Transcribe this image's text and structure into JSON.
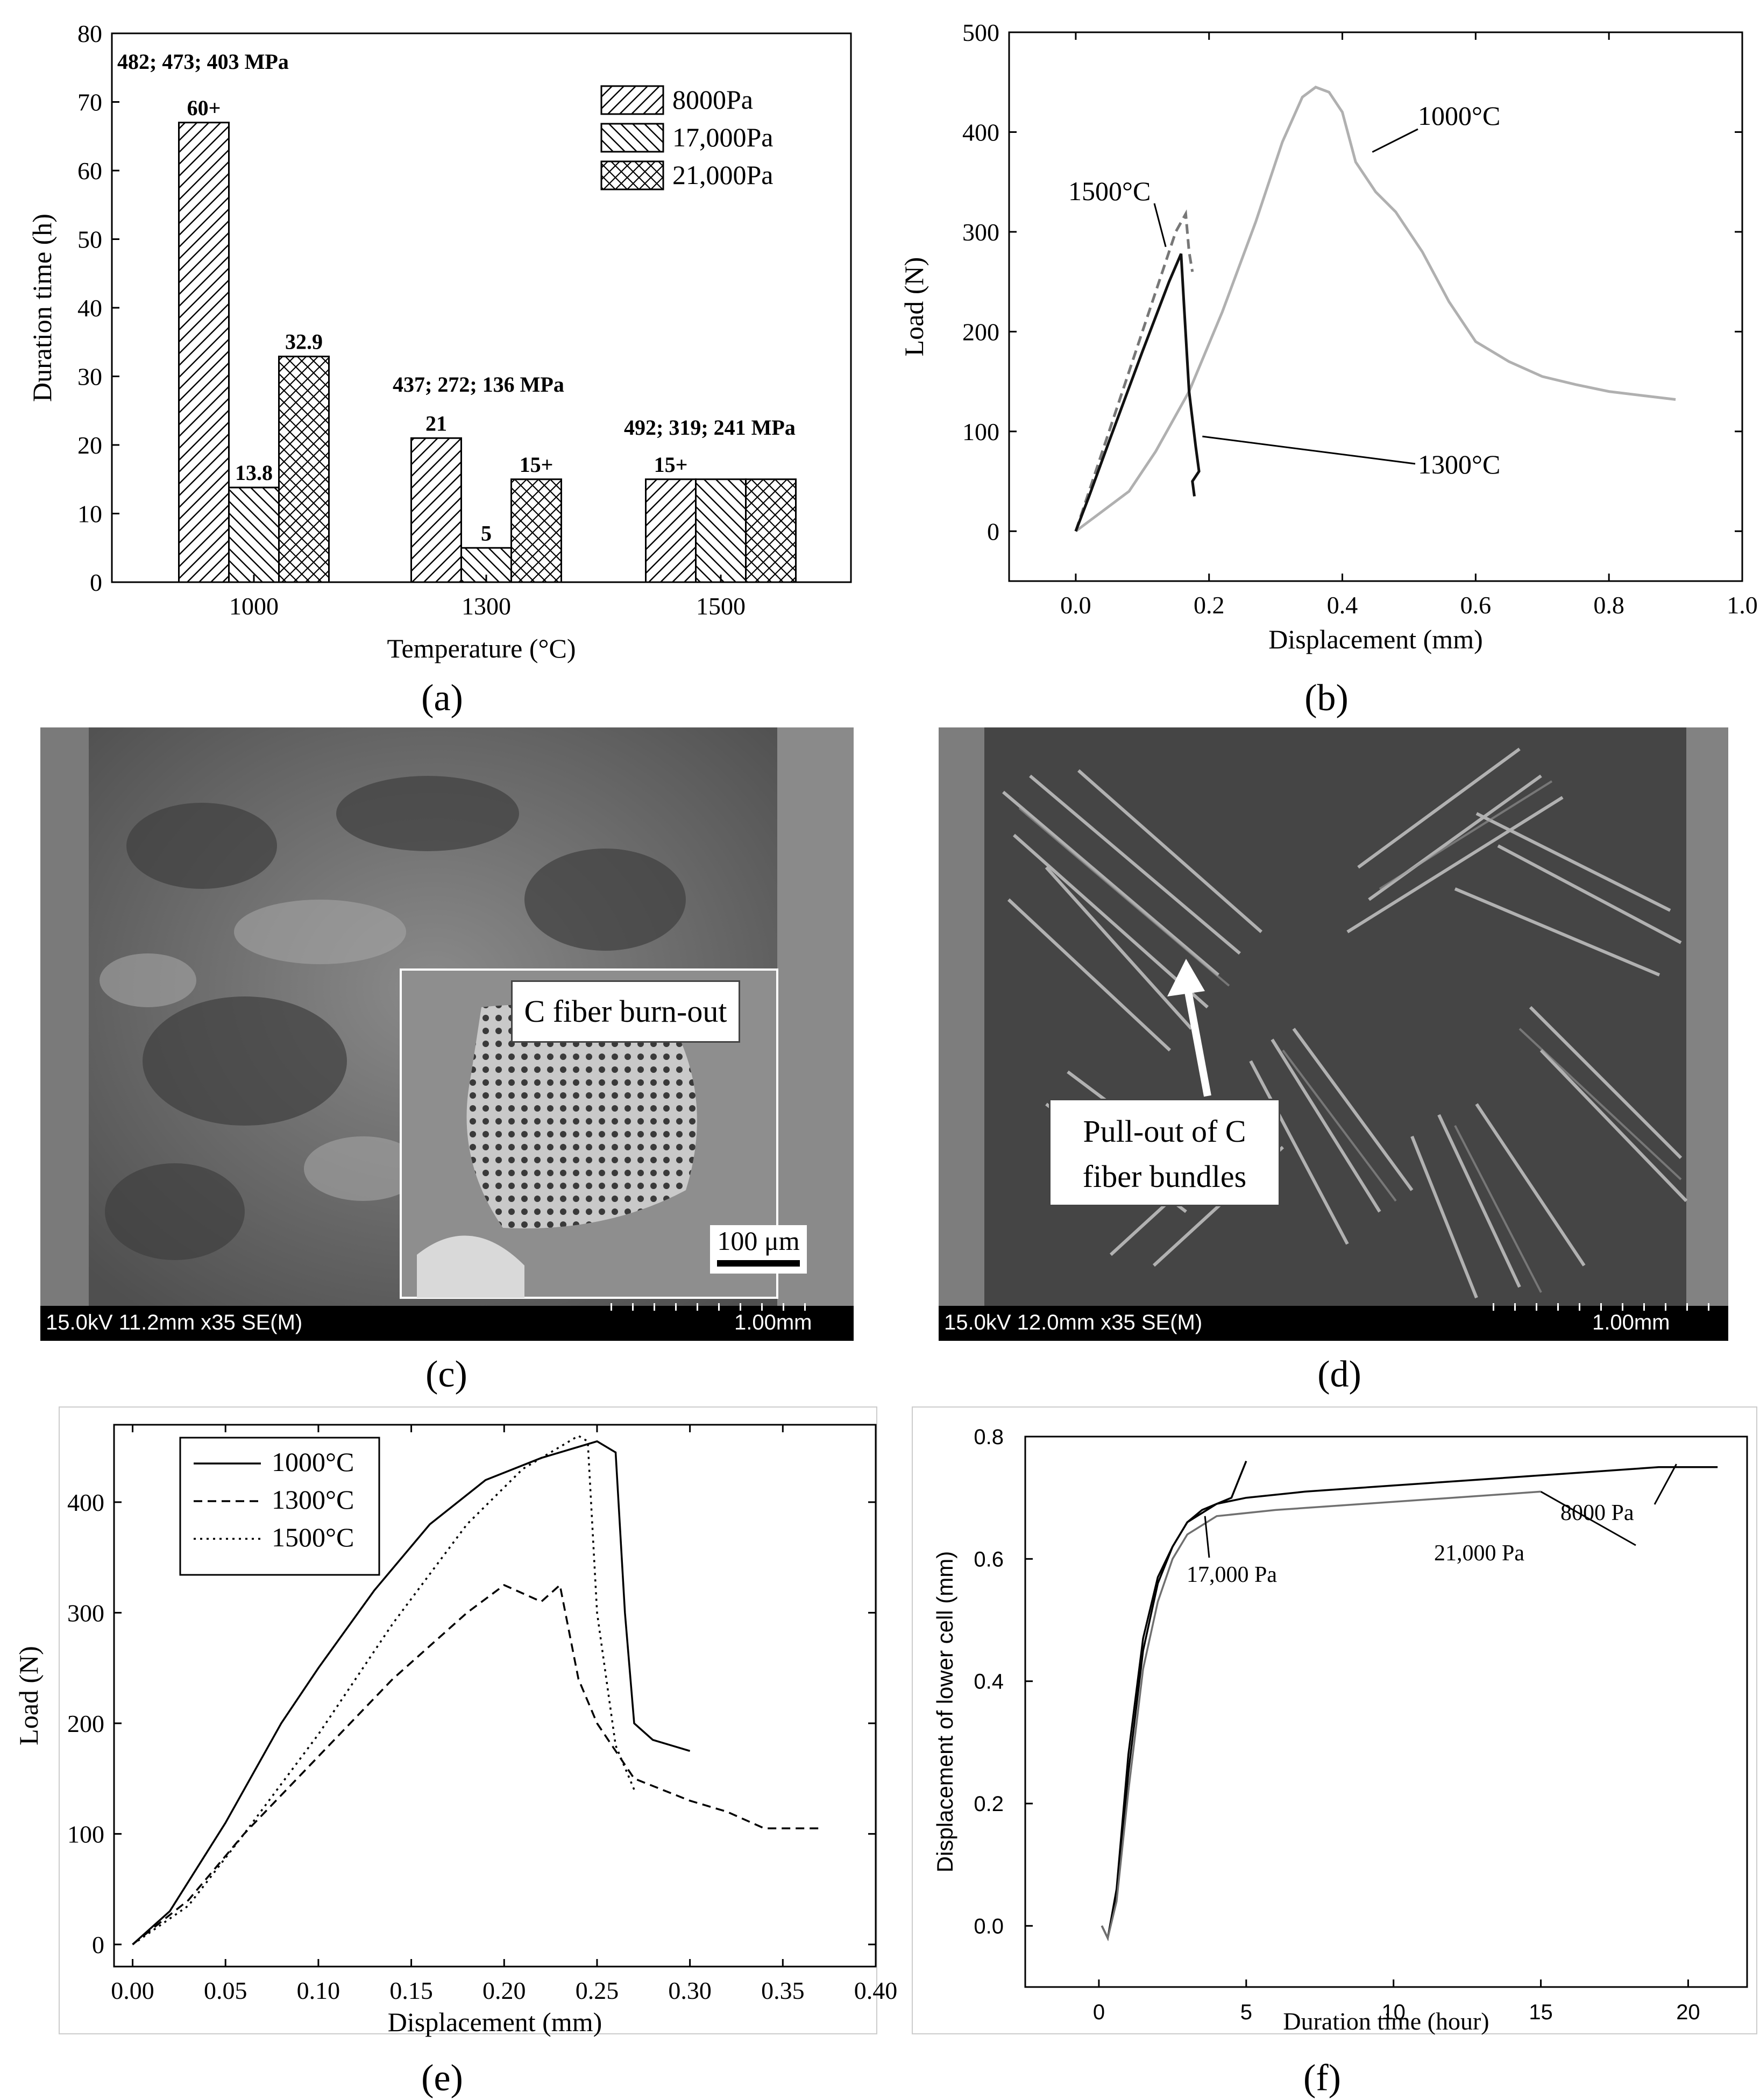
{
  "captions": [
    "(a)",
    "(b)",
    "(c)",
    "(d)",
    "(e)",
    "(f)"
  ],
  "sem_c": {
    "bar_text": "15.0kV 11.2mm x35 SE(M)",
    "scale_text": "1.00mm",
    "inset_label": "C fiber burn-out",
    "inset_scale": "100 μm"
  },
  "sem_d": {
    "bar_text": "15.0kV 12.0mm x35 SE(M)",
    "scale_text": "1.00mm",
    "label_line1": "Pull-out of C",
    "label_line2": "fiber bundles"
  },
  "chart_data": [
    {
      "id": "a",
      "type": "bar",
      "title": "",
      "xlabel": "Temperature (°C)",
      "ylabel": "Duration time (h)",
      "ylim": [
        0,
        80
      ],
      "yticks": [
        0,
        10,
        20,
        30,
        40,
        50,
        60,
        70,
        80
      ],
      "categories": [
        "1000",
        "1300",
        "1500"
      ],
      "series": [
        {
          "name": "8000Pa",
          "pattern": "hatch-forward",
          "values": [
            67,
            21,
            15
          ]
        },
        {
          "name": "17,000Pa",
          "pattern": "hatch-back",
          "values": [
            13.8,
            5,
            15
          ]
        },
        {
          "name": "21,000Pa",
          "pattern": "cross-hatch",
          "values": [
            32.9,
            15,
            15
          ]
        }
      ],
      "data_labels": [
        [
          "60+",
          "13.8",
          "32.9"
        ],
        [
          "21",
          "5",
          "15+"
        ],
        [
          "15+",
          "",
          ""
        ]
      ],
      "group_annotations": [
        "482; 473; 403 MPa",
        "437; 272; 136 MPa",
        "492; 319; 241 MPa"
      ],
      "legend_position": "top-right"
    },
    {
      "id": "b",
      "type": "line",
      "xlabel": "Displacement (mm)",
      "ylabel": "Load (N)",
      "xlim": [
        -0.1,
        1.0
      ],
      "ylim": [
        -50,
        500
      ],
      "xticks": [
        "0.0",
        "0.2",
        "0.4",
        "0.6",
        "0.8",
        "1.0"
      ],
      "xtick_values": [
        0,
        0.2,
        0.4,
        0.6,
        0.8,
        1.0
      ],
      "yticks": [
        0,
        100,
        200,
        300,
        400,
        500
      ],
      "series": [
        {
          "name": "1000°C",
          "color": "#b0b0b0",
          "style": "solid",
          "x": [
            0,
            0.03,
            0.08,
            0.12,
            0.17,
            0.22,
            0.27,
            0.31,
            0.34,
            0.36,
            0.38,
            0.4,
            0.42,
            0.45,
            0.48,
            0.52,
            0.56,
            0.6,
            0.65,
            0.7,
            0.75,
            0.8,
            0.85,
            0.9
          ],
          "y": [
            0,
            15,
            40,
            80,
            140,
            220,
            310,
            390,
            435,
            445,
            440,
            420,
            370,
            340,
            320,
            280,
            230,
            190,
            170,
            155,
            147,
            140,
            136,
            132
          ]
        },
        {
          "name": "1500°C",
          "color": "#777777",
          "style": "dashed",
          "x": [
            0,
            0.02,
            0.05,
            0.1,
            0.15,
            0.165,
            0.17,
            0.175
          ],
          "y": [
            0,
            40,
            100,
            200,
            300,
            318,
            280,
            260
          ]
        },
        {
          "name": "1300°C",
          "color": "#111111",
          "style": "solid",
          "x": [
            0,
            0.02,
            0.05,
            0.1,
            0.14,
            0.158,
            0.163,
            0.17,
            0.18,
            0.185,
            0.175,
            0.178
          ],
          "y": [
            0,
            35,
            90,
            180,
            250,
            278,
            220,
            140,
            85,
            60,
            50,
            35
          ]
        }
      ],
      "annotations": [
        "1000°C",
        "1500°C",
        "1300°C"
      ]
    },
    {
      "id": "e",
      "type": "line",
      "xlabel": "Displacement (mm)",
      "ylabel": "Load (N)",
      "xlim": [
        -0.01,
        0.4
      ],
      "ylim": [
        -20,
        470
      ],
      "xticks": [
        "0.00",
        "0.05",
        "0.10",
        "0.15",
        "0.20",
        "0.25",
        "0.30",
        "0.35",
        "0.40"
      ],
      "xtick_values": [
        0,
        0.05,
        0.1,
        0.15,
        0.2,
        0.25,
        0.3,
        0.35,
        0.4
      ],
      "yticks": [
        0,
        100,
        200,
        300,
        400
      ],
      "series": [
        {
          "name": "1000°C",
          "style": "solid",
          "x": [
            0,
            0.02,
            0.05,
            0.08,
            0.1,
            0.13,
            0.16,
            0.19,
            0.22,
            0.25,
            0.26,
            0.265,
            0.27,
            0.28,
            0.29,
            0.3
          ],
          "y": [
            0,
            30,
            110,
            200,
            250,
            320,
            380,
            420,
            440,
            455,
            445,
            300,
            200,
            185,
            180,
            175
          ]
        },
        {
          "name": "1300°C",
          "style": "dashed",
          "x": [
            0,
            0.03,
            0.06,
            0.1,
            0.14,
            0.18,
            0.2,
            0.22,
            0.23,
            0.24,
            0.25,
            0.27,
            0.3,
            0.32,
            0.34,
            0.37
          ],
          "y": [
            0,
            40,
            100,
            170,
            240,
            300,
            325,
            310,
            325,
            240,
            200,
            150,
            130,
            120,
            105,
            105
          ]
        },
        {
          "name": "1500°C",
          "style": "dotted",
          "x": [
            0,
            0.03,
            0.06,
            0.1,
            0.14,
            0.18,
            0.21,
            0.24,
            0.245,
            0.25,
            0.26,
            0.27
          ],
          "y": [
            0,
            35,
            100,
            190,
            290,
            380,
            430,
            460,
            455,
            300,
            180,
            140
          ]
        }
      ],
      "legend_position": "top-left"
    },
    {
      "id": "f",
      "type": "line",
      "xlabel": "Duration time (hour)",
      "ylabel": "Displacement of lower cell (mm)",
      "xlim": [
        -2.5,
        22
      ],
      "ylim": [
        -0.1,
        0.8
      ],
      "xticks": [
        "0",
        "5",
        "10",
        "15",
        "20"
      ],
      "xtick_values": [
        0,
        5,
        10,
        15,
        20
      ],
      "yticks": [
        "0.0",
        "0.2",
        "0.4",
        "0.6",
        "0.8"
      ],
      "ytick_values": [
        0,
        0.2,
        0.4,
        0.6,
        0.8
      ],
      "series": [
        {
          "name": "8000 Pa",
          "color": "#000000",
          "x": [
            0.1,
            0.3,
            0.6,
            1.0,
            1.5,
            2.0,
            2.5,
            3.0,
            4.0,
            5.0,
            7.0,
            10.0,
            13.0,
            16.0,
            19.0,
            21.0
          ],
          "y": [
            0.0,
            -0.02,
            0.05,
            0.25,
            0.45,
            0.56,
            0.62,
            0.66,
            0.69,
            0.7,
            0.71,
            0.72,
            0.73,
            0.74,
            0.75,
            0.75
          ]
        },
        {
          "name": "17,000 Pa",
          "color": "#000000",
          "x": [
            0.1,
            0.3,
            0.6,
            1.0,
            1.5,
            2.0,
            2.5,
            3.0,
            3.5,
            4.0,
            4.5,
            5.0
          ],
          "y": [
            0.0,
            -0.02,
            0.06,
            0.28,
            0.47,
            0.57,
            0.62,
            0.66,
            0.68,
            0.69,
            0.7,
            0.76
          ]
        },
        {
          "name": "21,000 Pa",
          "color": "#707070",
          "x": [
            0.1,
            0.3,
            0.6,
            1.0,
            1.5,
            2.0,
            2.5,
            3.0,
            4.0,
            6.0,
            9.0,
            12.0,
            15.0
          ],
          "y": [
            0.0,
            -0.02,
            0.04,
            0.22,
            0.42,
            0.53,
            0.6,
            0.64,
            0.67,
            0.68,
            0.69,
            0.7,
            0.71
          ]
        }
      ],
      "annotations": [
        "21,000 Pa",
        "8000 Pa",
        "17,000 Pa"
      ]
    }
  ]
}
